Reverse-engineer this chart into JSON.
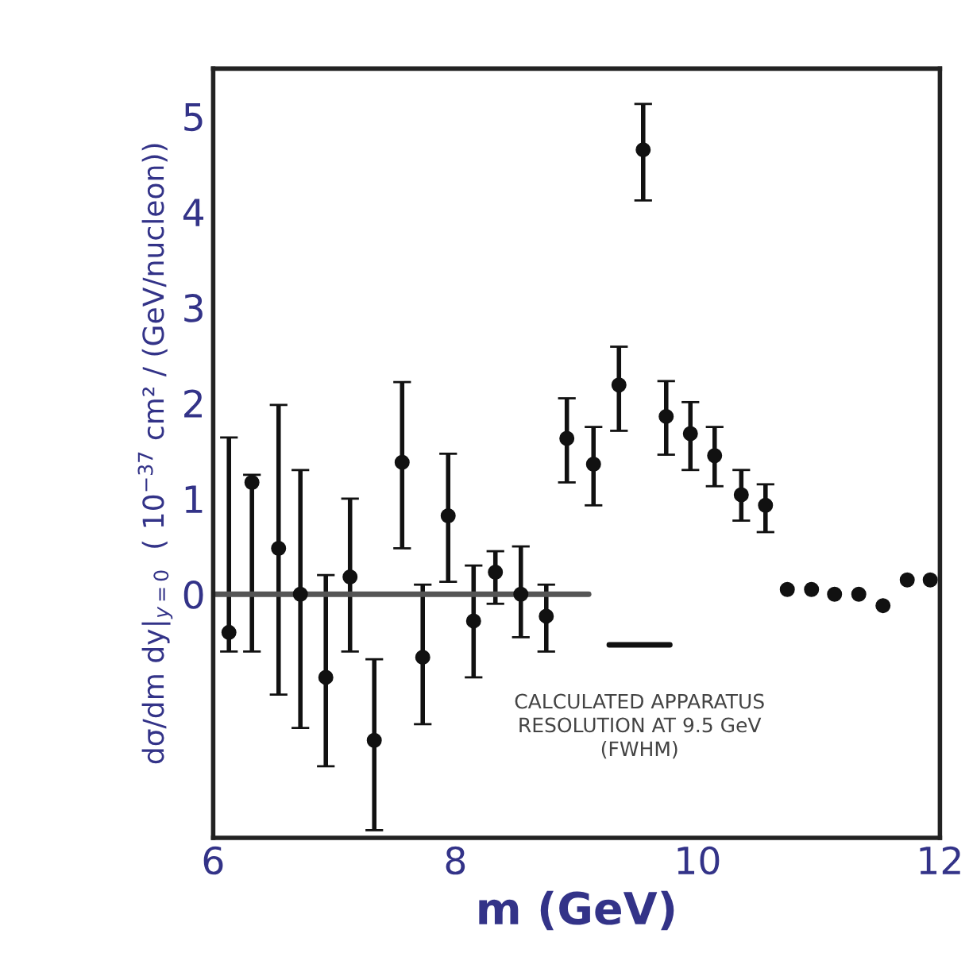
{
  "chart_data": {
    "type": "scatter",
    "xlabel": "m (GeV)",
    "ylabel": "dσ/dm dy|$_{y=0}$  ( 10$^{−37}$ cm² / (GeV/nucleon))",
    "xlim": [
      6,
      12
    ],
    "xticks": [
      6,
      8,
      10,
      12
    ],
    "ylim": [
      -2.55,
      5.5
    ],
    "yticks": [
      0,
      1,
      2,
      3,
      4,
      5
    ],
    "grid": false,
    "legend": false,
    "marker": "circle",
    "series": [
      {
        "color": "#111111",
        "x": [
          6.13,
          6.32,
          6.54,
          6.72,
          6.93,
          7.13,
          7.33,
          7.56,
          7.73,
          7.94,
          8.15,
          8.33,
          8.54,
          8.75,
          8.92,
          9.14,
          9.35,
          9.55,
          9.74,
          9.94,
          10.14,
          10.36,
          10.56,
          10.74,
          10.94,
          11.13,
          11.33,
          11.53,
          11.73,
          11.92
        ],
        "values": [
          -0.4,
          1.17,
          0.48,
          0,
          -0.87,
          0.18,
          -1.53,
          1.38,
          -0.66,
          0.82,
          -0.28,
          0.23,
          0,
          -0.23,
          1.63,
          1.36,
          2.19,
          4.65,
          1.86,
          1.68,
          1.45,
          1.04,
          0.93,
          0.05,
          0.05,
          0,
          0,
          -0.12,
          0.15,
          0.15
        ],
        "errors": [
          [
            -0.6,
            1.64
          ],
          [
            -0.6,
            1.25
          ],
          [
            -1.05,
            1.98
          ],
          [
            -1.4,
            1.3
          ],
          [
            -1.8,
            0.2
          ],
          [
            -0.6,
            1.0
          ],
          [
            -2.47,
            -0.68
          ],
          [
            0.48,
            2.22
          ],
          [
            -1.36,
            0.1
          ],
          [
            0.13,
            1.47
          ],
          [
            -0.87,
            0.3
          ],
          [
            -0.1,
            0.45
          ],
          [
            -0.45,
            0.5
          ],
          [
            -0.6,
            0.1
          ],
          [
            1.17,
            2.05
          ],
          [
            0.93,
            1.75
          ],
          [
            1.71,
            2.59
          ],
          [
            4.12,
            5.13
          ],
          [
            1.46,
            2.23
          ],
          [
            1.3,
            2.01
          ],
          [
            1.13,
            1.75
          ],
          [
            0.77,
            1.3
          ],
          [
            0.65,
            1.15
          ],
          null,
          null,
          null,
          null,
          null,
          null,
          null
        ]
      },
      {
        "type": "line",
        "color": "#555555",
        "x": [
          6,
          9.1
        ],
        "values": [
          0,
          0
        ],
        "marker": "none",
        "line_style": "solid"
      },
      {
        "type": "line",
        "color": "#111111",
        "x": [
          9.27,
          9.77
        ],
        "values": [
          -0.53,
          -0.53
        ],
        "marker": "none",
        "line_style": "solid"
      }
    ],
    "annotations": [
      {
        "text": "CALCULATED APPARATUS\nRESOLUTION AT 9.5 GeV\n(FWHM)",
        "x": 9.52,
        "y": -0.53
      }
    ]
  }
}
